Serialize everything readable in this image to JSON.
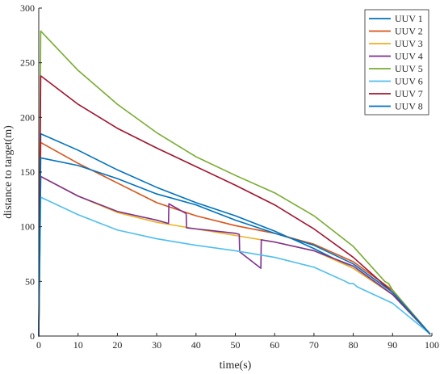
{
  "chart_data": {
    "type": "line",
    "xlabel": "time(s)",
    "ylabel": "distance to target(m)",
    "xlim": [
      0,
      100
    ],
    "ylim": [
      0,
      300
    ],
    "xticks": [
      0,
      10,
      20,
      30,
      40,
      50,
      60,
      70,
      80,
      90,
      100
    ],
    "yticks": [
      0,
      50,
      100,
      150,
      200,
      250,
      300
    ],
    "grid": false,
    "legend": {
      "placement": "top-right"
    },
    "series": [
      {
        "name": "UUV 1",
        "color": "#0072BD",
        "x": [
          0,
          0.5,
          10,
          20,
          30,
          40,
          50,
          60,
          70,
          80,
          90,
          99.5
        ],
        "y": [
          0,
          185,
          170,
          152,
          136,
          122,
          110,
          96,
          80,
          62,
          38,
          2
        ]
      },
      {
        "name": "UUV 2",
        "color": "#D95319",
        "x": [
          0,
          0.5,
          10,
          20,
          30,
          40,
          50,
          60,
          70,
          80,
          90,
          99.5
        ],
        "y": [
          0,
          177,
          158,
          140,
          122,
          110,
          101,
          94,
          84,
          68,
          42,
          2
        ]
      },
      {
        "name": "UUV 3",
        "color": "#EDB120",
        "x": [
          0,
          0.5,
          10,
          20,
          30,
          40,
          50,
          60,
          70,
          80,
          90,
          99.5
        ],
        "y": [
          0,
          146,
          128,
          113,
          104,
          98,
          92,
          86,
          78,
          62,
          38,
          2
        ]
      },
      {
        "name": "UUV 4",
        "color": "#7E2F8E",
        "x": [
          0,
          0.5,
          10,
          20,
          30,
          33,
          33.1,
          37.5,
          37.6,
          40,
          50,
          51,
          51.1,
          56.5,
          56.6,
          60,
          70,
          80,
          90,
          99.5
        ],
        "y": [
          0,
          146,
          128,
          114,
          106,
          103,
          121,
          112,
          99,
          98,
          94,
          93,
          77,
          62,
          88,
          86,
          78,
          64,
          38,
          2
        ]
      },
      {
        "name": "UUV 5",
        "color": "#77AC30",
        "x": [
          0,
          0.5,
          10,
          20,
          30,
          40,
          50,
          60,
          70,
          80,
          88,
          89,
          90,
          99.5
        ],
        "y": [
          0,
          279,
          243,
          212,
          186,
          164,
          147,
          131,
          110,
          82,
          50,
          48,
          42,
          2
        ]
      },
      {
        "name": "UUV 6",
        "color": "#4DBEEE",
        "x": [
          0,
          0.5,
          10,
          20,
          30,
          40,
          50,
          60,
          70,
          78,
          79,
          80,
          81,
          90,
          99.5
        ],
        "y": [
          0,
          127,
          111,
          97,
          89,
          83,
          78,
          72,
          63,
          50,
          48,
          48,
          45,
          30,
          2
        ]
      },
      {
        "name": "UUV 7",
        "color": "#A2142F",
        "x": [
          0,
          0.5,
          10,
          20,
          30,
          40,
          50,
          60,
          70,
          80,
          90,
          99.5
        ],
        "y": [
          0,
          238,
          212,
          190,
          172,
          155,
          138,
          120,
          98,
          72,
          40,
          2
        ]
      },
      {
        "name": "UUV 8",
        "color": "#0072BD",
        "x": [
          0,
          0.5,
          10,
          20,
          30,
          40,
          50,
          60,
          70,
          80,
          90,
          99.5
        ],
        "y": [
          0,
          163,
          156,
          144,
          130,
          120,
          106,
          94,
          83,
          66,
          40,
          2
        ]
      }
    ]
  }
}
